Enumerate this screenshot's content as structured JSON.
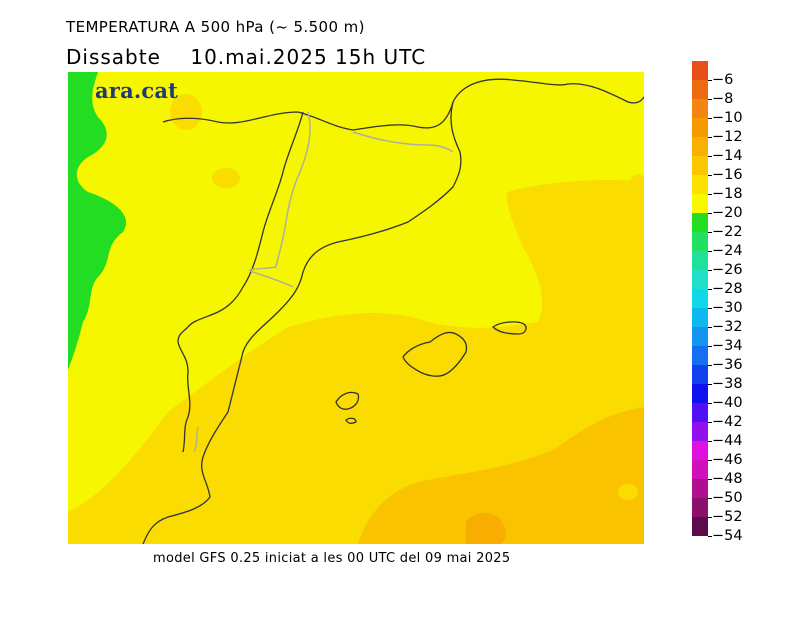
{
  "title": {
    "line1": "TEMPERATURA A 500 hPa (~ 5.500 m)",
    "day": "Dissabte",
    "datetime": "10.mai.2025 15h UTC"
  },
  "logo": {
    "text": "ara.cat"
  },
  "caption": "model GFS 0.25 iniciat a les 00 UTC del 09 mai 2025",
  "colorbar": {
    "labels": [
      "-6",
      "-8",
      "-10",
      "-12",
      "-14",
      "-16",
      "-18",
      "-20",
      "-22",
      "-24",
      "-26",
      "-28",
      "-30",
      "-32",
      "-34",
      "-36",
      "-38",
      "-40",
      "-42",
      "-44",
      "-46",
      "-48",
      "-50",
      "-52",
      "-54"
    ],
    "colors": [
      "#e8501a",
      "#ee6a10",
      "#f38510",
      "#f69a00",
      "#f9b000",
      "#fbc800",
      "#fce100",
      "#f8f800",
      "#22dd22",
      "#22e060",
      "#22e09a",
      "#20e0c8",
      "#10d8e8",
      "#10b8f0",
      "#1496f0",
      "#1470f0",
      "#1040f0",
      "#1010f0",
      "#5010f0",
      "#9010f0",
      "#e010e0",
      "#d010b8",
      "#b01090",
      "#8a106e",
      "#5c0c4a"
    ]
  },
  "map": {
    "regions": [
      {
        "name": "background-yellow",
        "color": "#f6f600"
      },
      {
        "name": "green-band",
        "color": "#22dd22"
      },
      {
        "name": "light-orange",
        "color": "#fadc00"
      },
      {
        "name": "orange",
        "color": "#f9c300"
      },
      {
        "name": "dark-orange",
        "color": "#f7ae00"
      }
    ]
  }
}
